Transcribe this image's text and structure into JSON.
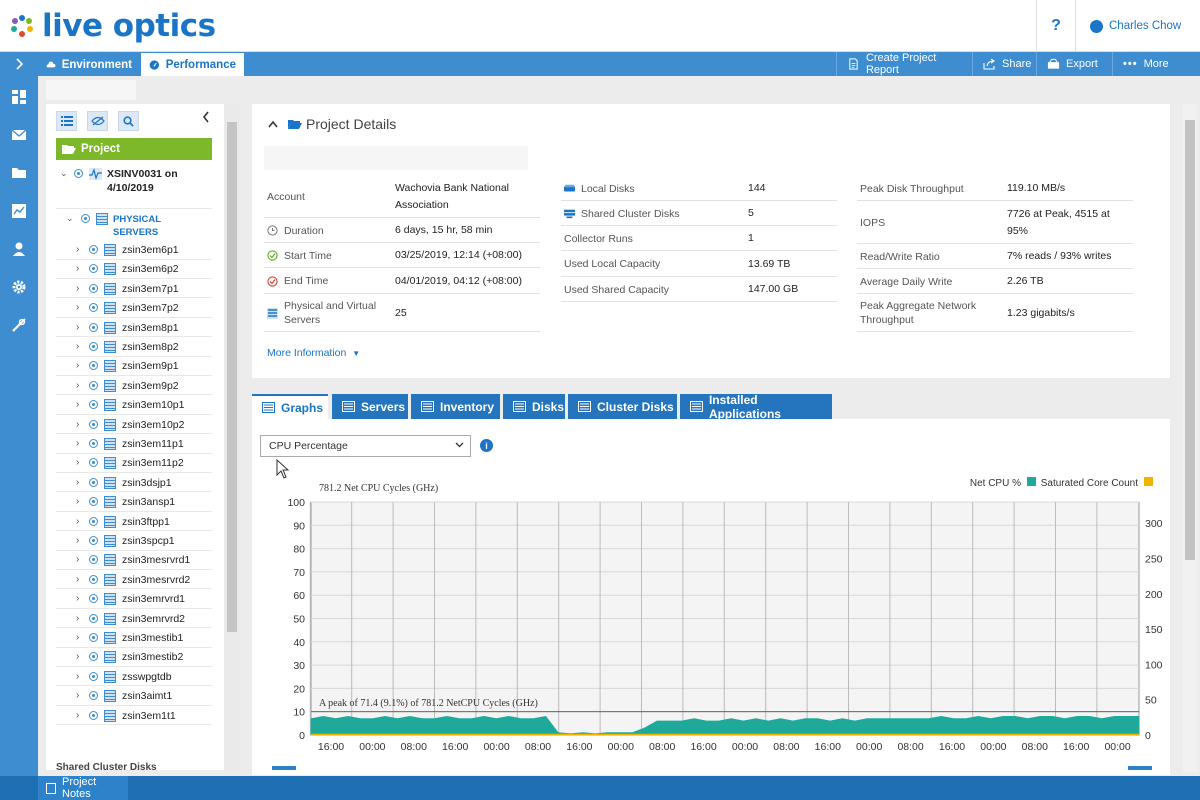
{
  "app": {
    "logo_text": "live optics",
    "help_label": "?",
    "user_name": "Charles Chow"
  },
  "nav_tabs": {
    "environment": "Environment",
    "performance": "Performance"
  },
  "actions": {
    "report": "Create Project Report",
    "share": "Share",
    "export": "Export",
    "more": "More"
  },
  "rail_icons": [
    "dashboard-icon",
    "mail-icon",
    "folder-icon",
    "chart-icon",
    "user-icon",
    "gear-icon",
    "tools-icon"
  ],
  "tree": {
    "project_label": "Project",
    "collector_label": "XSINV0031 on 4/10/2019",
    "group_label": "PHYSICAL SERVERS",
    "servers": [
      "zsin3em6p1",
      "zsin3em6p2",
      "zsin3em7p1",
      "zsin3em7p2",
      "zsin3em8p1",
      "zsin3em8p2",
      "zsin3em9p1",
      "zsin3em9p2",
      "zsin3em10p1",
      "zsin3em10p2",
      "zsin3em11p1",
      "zsin3em11p2",
      "zsin3dsjp1",
      "zsin3ansp1",
      "zsin3ftpp1",
      "zsin3spcp1",
      "zsin3mesrvrd1",
      "zsin3mesrvrd2",
      "zsin3emrvrd1",
      "zsin3emrvrd2",
      "zsin3mestib1",
      "zsin3mestib2",
      "zsswpgtdb",
      "zsin3aimt1",
      "zsin3em1t1"
    ],
    "shared_cluster_label": "Shared Cluster Disks"
  },
  "project_details": {
    "title": "Project Details",
    "col1": [
      {
        "key": "Account",
        "value": "Wachovia Bank National Association",
        "icon": ""
      },
      {
        "key": "Duration",
        "value": "6 days, 15 hr, 58 min",
        "icon": "clock-icon"
      },
      {
        "key": "Start Time",
        "value": "03/25/2019, 12:14 (+08:00)",
        "icon": "start-icon"
      },
      {
        "key": "End Time",
        "value": "04/01/2019, 04:12 (+08:00)",
        "icon": "end-icon"
      },
      {
        "key": "Physical and Virtual Servers",
        "value": "25",
        "icon": "server-icon"
      }
    ],
    "col2": [
      {
        "key": "Local Disks",
        "value": "144",
        "icon": "disk-icon"
      },
      {
        "key": "Shared Cluster Disks",
        "value": "5",
        "icon": "cluster-disk-icon"
      },
      {
        "key": "Collector Runs",
        "value": "1",
        "icon": ""
      },
      {
        "key": "Used Local Capacity",
        "value": "13.69 TB",
        "icon": ""
      },
      {
        "key": "Used Shared Capacity",
        "value": "147.00 GB",
        "icon": ""
      }
    ],
    "col3": [
      {
        "key": "Peak Disk Throughput",
        "value": "119.10 MB/s"
      },
      {
        "key": "IOPS",
        "value": "7726 at Peak, 4515 at 95%"
      },
      {
        "key": "Read/Write Ratio",
        "value": "7% reads / 93% writes"
      },
      {
        "key": "Average Daily Write",
        "value": "2.26 TB"
      },
      {
        "key": "Peak Aggregate Network Throughput",
        "value": "1.23 gigabits/s"
      }
    ],
    "more_info": "More Information"
  },
  "graph_tabs": [
    "Graphs",
    "Servers",
    "Inventory",
    "Disks",
    "Cluster Disks",
    "Installed Applications"
  ],
  "metric_select": "CPU Percentage",
  "colors": {
    "accent": "#1a75c8",
    "bar": "#3d8dd0",
    "green": "#7cb829",
    "teal": "#1fa99a",
    "gold": "#f0b400"
  },
  "chart_data": {
    "type": "area",
    "top_label": "781.2 Net CPU Cycles (GHz)",
    "peak_label": "A peak of 71.4 (9.1%) of 781.2 NetCPU Cycles (GHz)",
    "legend": [
      {
        "name": "Net CPU %",
        "color": "#1fa99a"
      },
      {
        "name": "Saturated Core Count",
        "color": "#f0b400"
      }
    ],
    "y_left": {
      "ticks": [
        0,
        10,
        20,
        30,
        40,
        50,
        60,
        70,
        80,
        90,
        100
      ],
      "range": [
        0,
        100
      ]
    },
    "y_right": {
      "ticks": [
        0,
        50,
        100,
        150,
        200,
        250,
        300
      ],
      "range": [
        0,
        330
      ]
    },
    "x_tick_labels": [
      "16:00",
      "00:00",
      "08:00",
      "16:00",
      "00:00",
      "08:00",
      "16:00",
      "00:00",
      "08:00",
      "16:00",
      "00:00",
      "08:00",
      "16:00",
      "00:00",
      "08:00",
      "16:00",
      "00:00",
      "08:00",
      "16:00",
      "00:00"
    ],
    "series": [
      {
        "name": "Net CPU %",
        "x": [
          0,
          0.3,
          0.6,
          0.9,
          1.2,
          1.5,
          1.8,
          2.1,
          2.4,
          2.7,
          3.0,
          3.3,
          3.6,
          3.9,
          4.2,
          4.5,
          4.8,
          5.1,
          5.4,
          5.7,
          6.0,
          6.3,
          6.6,
          6.9,
          7.2,
          7.5,
          7.8,
          8.1,
          8.4,
          8.7,
          9.0,
          9.3,
          9.6,
          9.9,
          10.2,
          10.5,
          10.8,
          11.1,
          11.4,
          11.7,
          12.0,
          12.3,
          12.6,
          12.9,
          13.2,
          13.5,
          13.8,
          14.1,
          14.4,
          14.7,
          15.0,
          15.3,
          15.6,
          15.9,
          16.2,
          16.5,
          16.8,
          17.1,
          17.4,
          17.7,
          18.0,
          18.3,
          18.6,
          18.9,
          19.2,
          19.5,
          19.8,
          20.1
        ],
        "values": [
          7,
          8,
          7,
          8,
          7,
          7,
          8,
          7,
          8,
          7,
          7,
          8,
          7,
          7,
          8,
          7,
          8,
          7,
          7,
          8,
          1,
          0.5,
          1,
          0.5,
          1,
          1,
          1,
          3,
          6,
          6,
          6,
          7,
          6,
          6,
          7,
          6,
          7,
          6,
          7,
          6,
          7,
          7,
          6,
          7,
          6,
          7,
          7,
          7,
          7,
          7,
          7,
          8,
          7,
          7,
          8,
          7,
          8,
          8,
          7,
          8,
          8,
          7,
          8,
          8,
          7,
          8,
          8,
          8
        ]
      },
      {
        "name": "Saturated Core Count",
        "x": [
          0,
          5,
          10,
          15,
          20.1
        ],
        "values": [
          0,
          0,
          0,
          0,
          0
        ]
      }
    ]
  }
}
